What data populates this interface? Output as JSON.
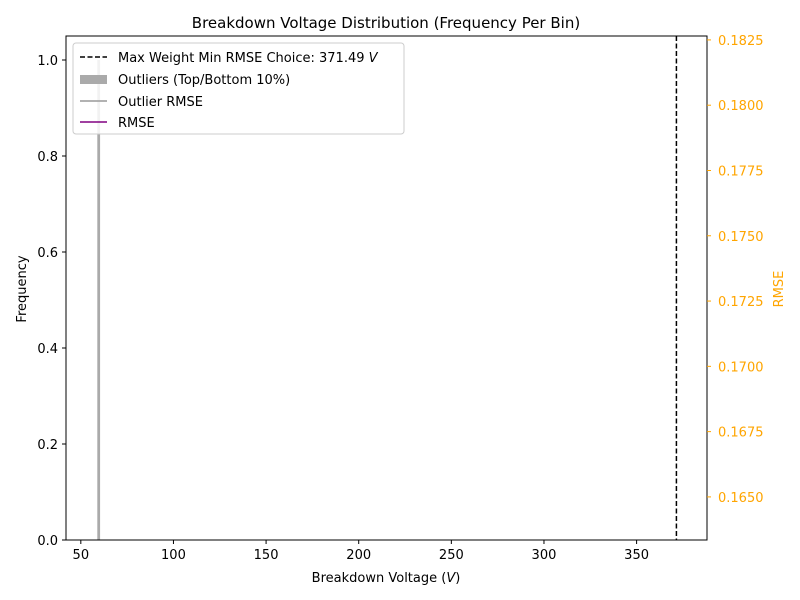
{
  "chart_data": {
    "type": "bar",
    "title": "Breakdown Voltage Distribution (Frequency Per Bin)",
    "xlabel": "Breakdown Voltage (",
    "xlabel_italic": "V",
    "xlabel_close": ")",
    "ylabel": "Frequency",
    "y2label": "RMSE",
    "xlim": [
      42,
      388
    ],
    "ylim": [
      0,
      1.05
    ],
    "y2lim": [
      0.16335,
      0.18265
    ],
    "xticks": [
      50,
      100,
      150,
      200,
      250,
      300,
      350
    ],
    "yticks": [
      0.0,
      0.2,
      0.4,
      0.6,
      0.8,
      1.0
    ],
    "y2ticks": [
      0.165,
      0.1675,
      0.17,
      0.1725,
      0.175,
      0.1775,
      0.18,
      0.1825
    ],
    "bars": [
      {
        "series": "Outliers (Top/Bottom 10%)",
        "x_start": 58.9,
        "x_end": 60.4,
        "value": 1.0,
        "color": "#aaaaaa"
      }
    ],
    "vline": {
      "x": 371.49,
      "color": "#000000",
      "style": "dashed"
    },
    "legend": {
      "position": "top-left",
      "entries": [
        {
          "label": "Max Weight Min RMSE Choice: 371.49 ",
          "label_italic": "V",
          "marker": "dashed-line",
          "color": "#000000"
        },
        {
          "label": "Outliers (Top/Bottom 10%)",
          "marker": "patch",
          "color": "#aaaaaa"
        },
        {
          "label": "Outlier RMSE",
          "marker": "line",
          "color": "#999999"
        },
        {
          "label": "RMSE",
          "marker": "line",
          "color": "#800080"
        }
      ]
    },
    "colors": {
      "right_axis": "#ffa500"
    }
  }
}
